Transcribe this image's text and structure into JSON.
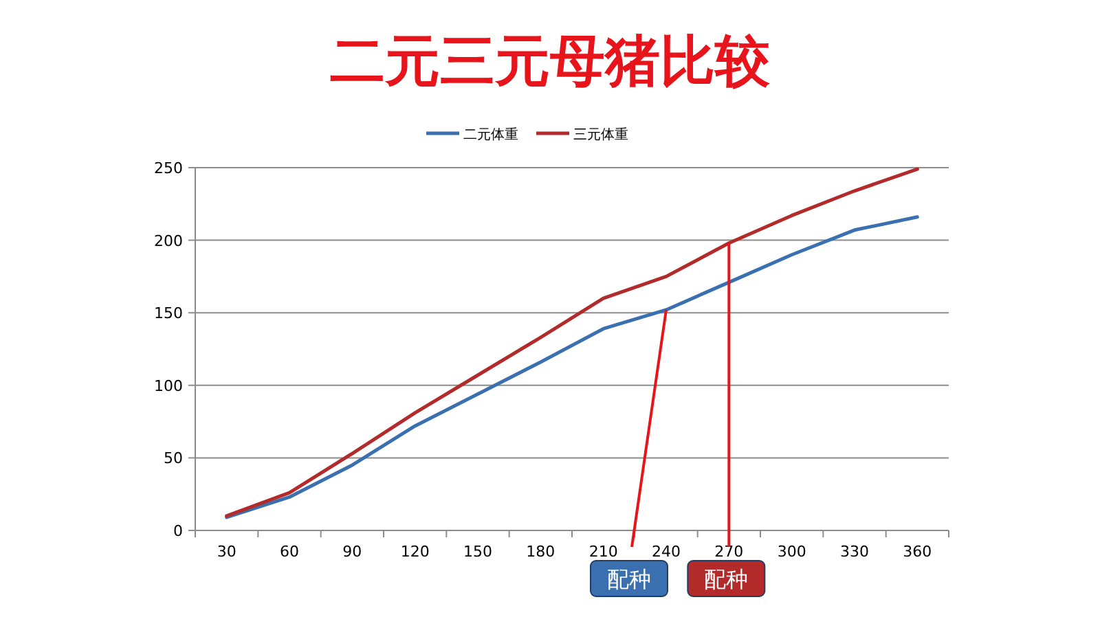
{
  "chart_data": {
    "type": "line",
    "title": "二元三元母猪比较",
    "categories": [
      "30",
      "60",
      "90",
      "120",
      "150",
      "180",
      "210",
      "240",
      "270",
      "300",
      "330",
      "360"
    ],
    "series": [
      {
        "name": "二元体重",
        "color": "#3a6fb0",
        "values": [
          9,
          23,
          45,
          72,
          94,
          116,
          139,
          152,
          171,
          190,
          207,
          216
        ]
      },
      {
        "name": "三元体重",
        "color": "#b22a2a",
        "values": [
          10,
          26,
          53,
          81,
          107,
          133,
          160,
          175,
          198,
          217,
          234,
          249
        ]
      }
    ],
    "ylim": [
      0,
      250
    ],
    "yticks": [
      0,
      50,
      100,
      150,
      200,
      250
    ],
    "grid": "y",
    "legend": "top",
    "marker": "none",
    "line_style": "solid",
    "annotations": [
      {
        "text": "配种",
        "x": "240",
        "y": 152
      },
      {
        "text": "配种",
        "x": "270",
        "y": 198
      }
    ]
  }
}
